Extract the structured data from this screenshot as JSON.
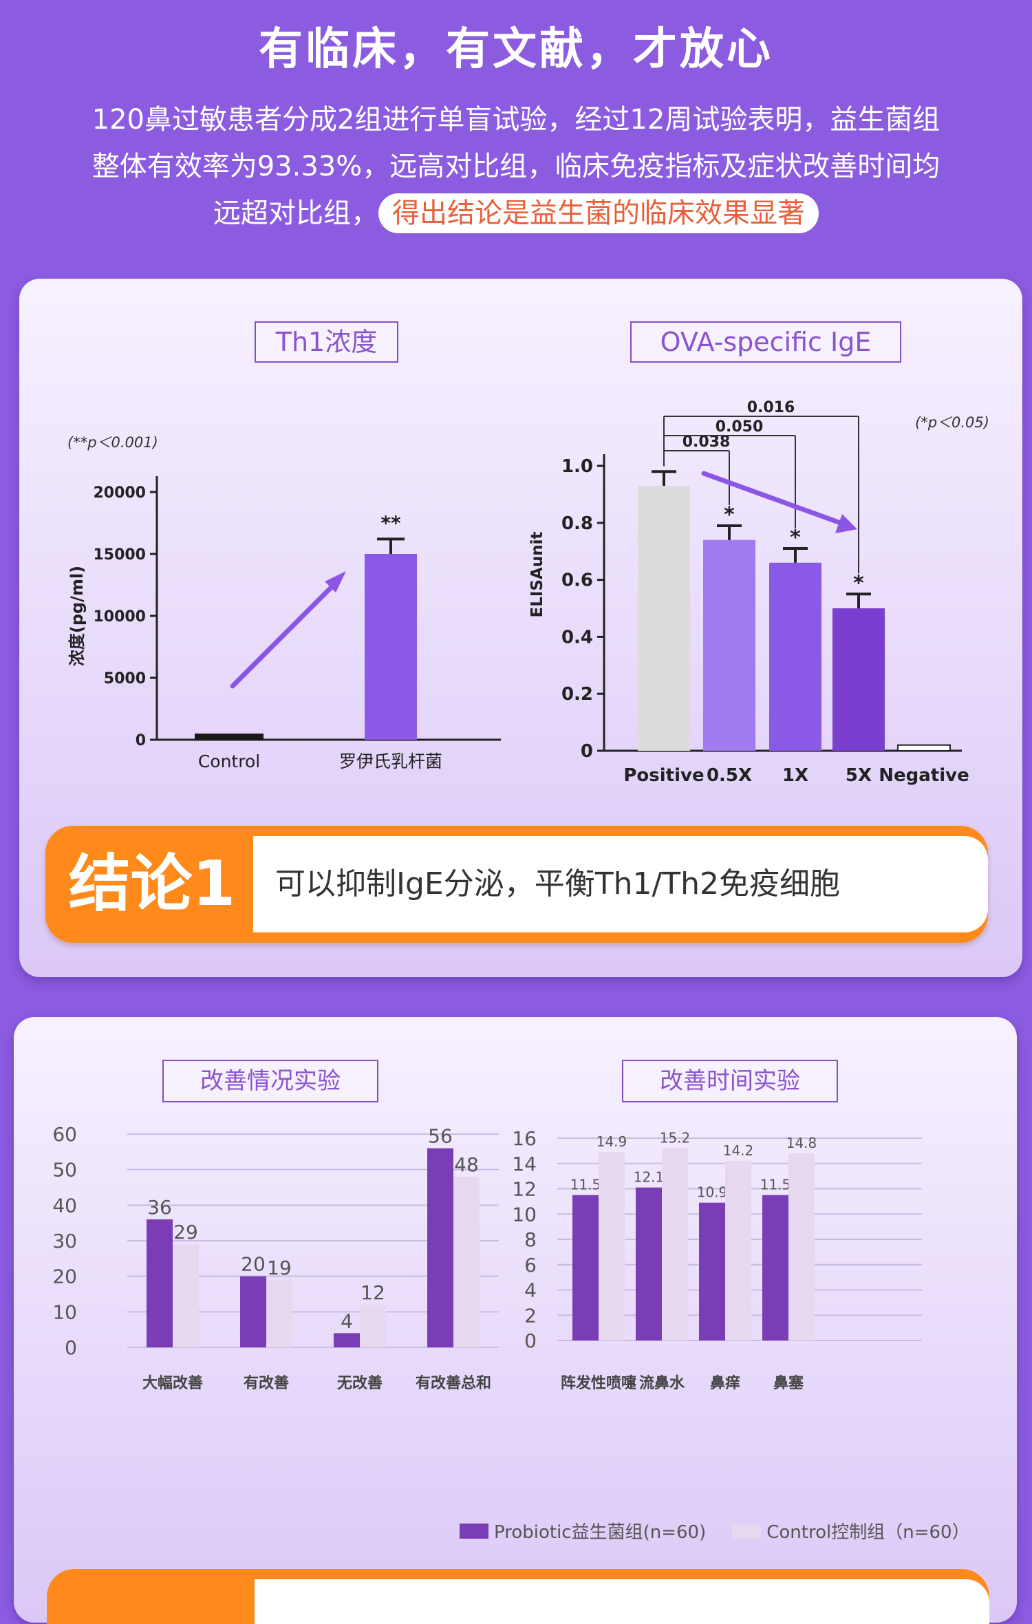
{
  "header": {
    "title": "有临床，有文献，才放心",
    "intro_line1": "120鼻过敏患者分成2组进行单盲试验，经过12周试验表明，益生菌组",
    "intro_line2": "整体有效率为93.33%，远高对比组，临床免疫指标及症状改善时间均",
    "intro_line3": "远超对比组，",
    "intro_highlight": "得出结论是益生菌的临床效果显著"
  },
  "colors": {
    "page_bg": "#8c5ce0",
    "probiotic": "#7b3db5",
    "control": "#e6d9ef",
    "accent_orange": "#ff8a1c",
    "arrow": "#8b55e6"
  },
  "section1": {
    "conclusion_tag": "结论1",
    "conclusion_text": "可以抑制IgE分泌，平衡Th1/Th2免疫细胞"
  },
  "chart_data": [
    {
      "type": "bar",
      "title": "Th1浓度",
      "ylabel": "浓度(pg/ml)",
      "note": "(**p＜0.001)",
      "categories": [
        "Control",
        "罗伊氏乳杆菌"
      ],
      "values": [
        500,
        15000
      ],
      "errors": [
        0,
        1200
      ],
      "significance": [
        "",
        "**"
      ],
      "yticks": [
        0,
        5000,
        10000,
        15000,
        20000
      ],
      "ytick_labels": [
        "0",
        "5000",
        "10000",
        "15000",
        "20000"
      ],
      "ylim": [
        0,
        20000
      ],
      "colors": [
        "#1a1a1a",
        "#8a5ae6"
      ]
    },
    {
      "type": "bar",
      "title": "OVA-specific IgE",
      "ylabel": "ELISAunit",
      "note": "(*p＜0.05)",
      "categories": [
        "Positive",
        "0.5X",
        "1X",
        "5X",
        "Negative"
      ],
      "values": [
        0.93,
        0.74,
        0.66,
        0.5,
        0.02
      ],
      "errors": [
        0.05,
        0.05,
        0.05,
        0.05,
        0
      ],
      "significance": [
        "",
        "*",
        "*",
        "*",
        ""
      ],
      "comparisons": [
        {
          "to": "0.5X",
          "p": "0.038"
        },
        {
          "to": "1X",
          "p": "0.050"
        },
        {
          "to": "5X",
          "p": "0.016"
        }
      ],
      "yticks": [
        0,
        0.2,
        0.4,
        0.6,
        0.8,
        1.0
      ],
      "ytick_labels": [
        "0",
        "0.2",
        "0.4",
        "0.6",
        "0.8",
        "1.0"
      ],
      "ylim": [
        0,
        1.0
      ],
      "colors": [
        "#dcdcdc",
        "#a27af0",
        "#8a5ae6",
        "#7b3fd0",
        "#ffffff"
      ]
    },
    {
      "type": "bar",
      "title": "改善情况实验",
      "categories": [
        "大幅改善",
        "有改善",
        "无改善",
        "有改善总和"
      ],
      "series": [
        {
          "name": "Probiotic益生菌组(n=60)",
          "values": [
            36,
            20,
            4,
            56
          ]
        },
        {
          "name": "Control控制组（n=60）",
          "values": [
            29,
            19,
            12,
            48
          ]
        }
      ],
      "yticks": [
        0,
        10,
        20,
        30,
        40,
        50,
        60
      ],
      "ylim": [
        0,
        60
      ]
    },
    {
      "type": "bar",
      "title": "改善时间实验",
      "categories": [
        "阵发性喷嚏",
        "流鼻水",
        "鼻痒",
        "鼻塞"
      ],
      "series": [
        {
          "name": "Probiotic益生菌组(n=60)",
          "values": [
            11.5,
            12.1,
            10.9,
            11.5
          ]
        },
        {
          "name": "Control控制组（n=60）",
          "values": [
            14.9,
            15.2,
            14.2,
            14.8
          ]
        }
      ],
      "yticks": [
        0,
        2,
        4,
        6,
        8,
        10,
        12,
        14,
        16
      ],
      "ylim": [
        0,
        16
      ]
    }
  ],
  "legend": {
    "probiotic": "Probiotic益生菌组(n=60)",
    "control": "Control控制组（n=60）"
  }
}
